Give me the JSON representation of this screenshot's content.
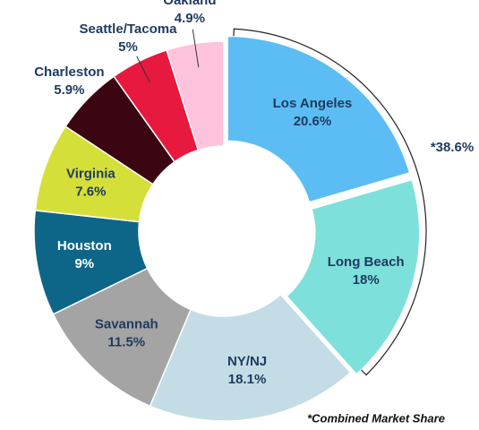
{
  "chart_data": {
    "type": "donut",
    "categories": [
      "Los Angeles",
      "Long Beach",
      "NY/NJ",
      "Savannah",
      "Houston",
      "Virginia",
      "Charleston",
      "Seattle/Tacoma",
      "Oakland"
    ],
    "values": [
      20.6,
      18,
      18.1,
      11.5,
      9,
      7.6,
      5.9,
      5,
      4.9
    ],
    "value_labels": [
      "20.6%",
      "18%",
      "18.1%",
      "11.5%",
      "9%",
      "7.6%",
      "5.9%",
      "5%",
      "4.9%"
    ],
    "colors": [
      "#5cbcf4",
      "#7ee0da",
      "#c3dce5",
      "#a4a4a4",
      "#0d6688",
      "#d5df3a",
      "#3b0612",
      "#e8193f",
      "#fdc2dc"
    ],
    "annotations": [
      "*38.6%",
      "*Combined Market Share"
    ]
  }
}
